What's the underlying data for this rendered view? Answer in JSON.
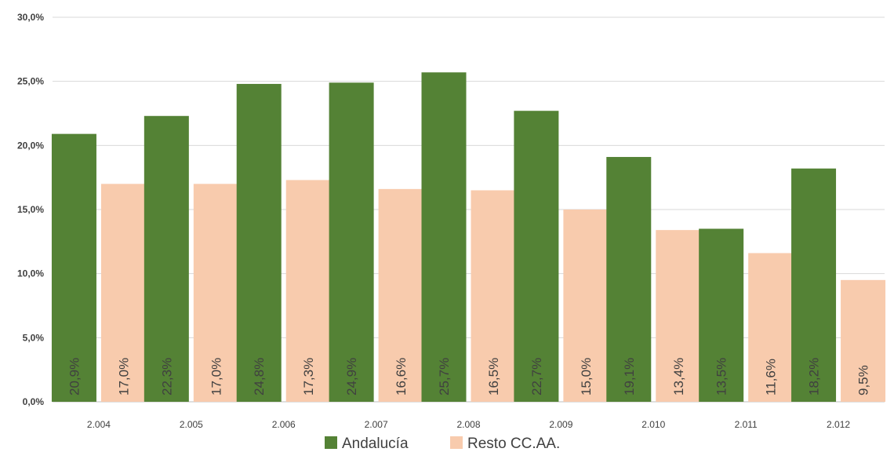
{
  "chart_data": {
    "type": "bar",
    "categories": [
      "2.004",
      "2.005",
      "2.006",
      "2.007",
      "2.008",
      "2.009",
      "2.010",
      "2.011",
      "2.012"
    ],
    "series": [
      {
        "name": "Andalucía",
        "color": "#548235",
        "values": [
          20.9,
          22.3,
          24.8,
          24.9,
          25.7,
          22.7,
          19.1,
          13.5,
          18.2
        ],
        "labels": [
          "20,9%",
          "22,3%",
          "24,8%",
          "24,9%",
          "25,7%",
          "22,7%",
          "19,1%",
          "13,5%",
          "18,2%"
        ]
      },
      {
        "name": "Resto CC.AA.",
        "color": "#F8CBAD",
        "values": [
          17.0,
          17.0,
          17.3,
          16.6,
          16.5,
          15.0,
          13.4,
          11.6,
          9.5
        ],
        "labels": [
          "17,0%",
          "17,0%",
          "17,3%",
          "16,6%",
          "16,5%",
          "15,0%",
          "13,4%",
          "11,6%",
          "9,5%"
        ]
      }
    ],
    "yticks": [
      "0,0%",
      "5,0%",
      "10,0%",
      "15,0%",
      "20,0%",
      "25,0%",
      "30,0%"
    ],
    "ylim": [
      0,
      30
    ],
    "grid": true,
    "legend_position": "bottom"
  }
}
